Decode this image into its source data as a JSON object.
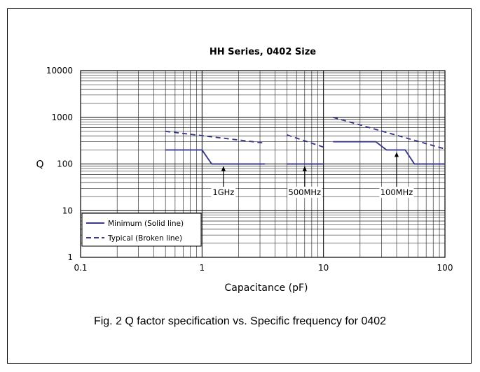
{
  "figure": {
    "caption": "Fig. 2 Q factor specification vs. Specific frequency for 0402"
  },
  "chart_data": {
    "type": "line",
    "title": "HH Series, 0402 Size",
    "xlabel": "Capacitance (pF)",
    "ylabel": "Q",
    "x_scale": "log",
    "y_scale": "log",
    "xlim": [
      0.1,
      100
    ],
    "ylim": [
      1,
      10000
    ],
    "grid": true,
    "x_ticks": [
      "0.1",
      "1",
      "10",
      "100"
    ],
    "y_ticks": [
      "1",
      "10",
      "100",
      "1000",
      "10000"
    ],
    "legend": {
      "placement": "bottom-left",
      "entries": [
        "Minimum (Solid line)",
        "Typical (Broken line)"
      ]
    },
    "series": [
      {
        "name": "Minimum (Solid line)",
        "style": "solid",
        "color": "#3a3a8c",
        "segments": [
          [
            [
              0.5,
              200
            ],
            [
              1.0,
              200
            ],
            [
              1.2,
              100
            ],
            [
              3.3,
              100
            ]
          ],
          [
            [
              5.0,
              100
            ],
            [
              10.0,
              100
            ]
          ],
          [
            [
              12.0,
              300
            ],
            [
              27.0,
              300
            ],
            [
              33.0,
              200
            ],
            [
              47.0,
              200
            ],
            [
              56.0,
              100
            ],
            [
              100.0,
              100
            ]
          ]
        ]
      },
      {
        "name": "Typical (Broken line)",
        "style": "dashed",
        "color": "#3a3a8c",
        "segments": [
          [
            [
              0.5,
              500
            ],
            [
              3.3,
              280
            ]
          ],
          [
            [
              5.0,
              420
            ],
            [
              10.0,
              230
            ]
          ],
          [
            [
              12.0,
              1000
            ],
            [
              100.0,
              210
            ]
          ]
        ]
      }
    ],
    "annotations": [
      {
        "label": "1GHz",
        "x": 1.5,
        "y": 100
      },
      {
        "label": "500MHz",
        "x": 7.0,
        "y": 100
      },
      {
        "label": "100MHz",
        "x": 40.0,
        "y": 200
      }
    ]
  }
}
